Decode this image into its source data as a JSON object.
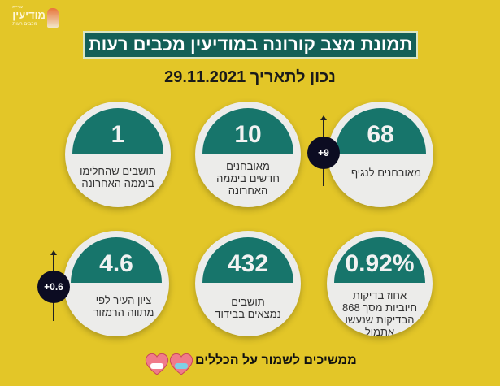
{
  "logo": {
    "small": "עיריית",
    "main": "מודיעין",
    "sub": "מכבים רעות"
  },
  "title": "תמונת מצב קורונה במודיעין מכבים רעות",
  "date_line": "נכון לתאריך 29.11.2021",
  "stats": [
    {
      "value": "68",
      "label": "מאובחנים לנגיף",
      "change": "+9"
    },
    {
      "value": "10",
      "label": "מאובחנים חדשים ביממה האחרונה"
    },
    {
      "value": "1",
      "label": "תושבים שהחלימו ביממה האחרונה"
    },
    {
      "value": "0.92%",
      "label": "אחוז בדיקות חיוביות מסך 868 הבדיקות שנעשו אתמול"
    },
    {
      "value": "432",
      "label": "תושבים נמצאים בבידוד"
    },
    {
      "value": "4.6",
      "label": "ציון העיר לפי מתווה הרמזור",
      "change": "+0.6"
    }
  ],
  "footer": "ממשיכים לשמור על הכללים",
  "colors": {
    "background": "#e3c628",
    "teal": "#17756b",
    "title_bg": "#135f57"
  }
}
